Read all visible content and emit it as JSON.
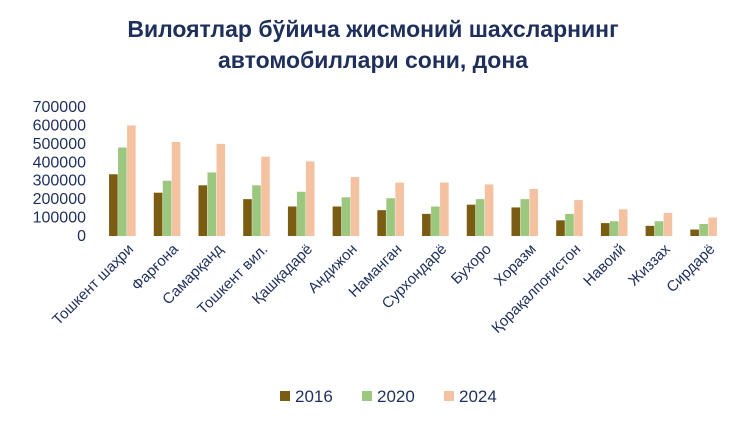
{
  "chart_data": {
    "type": "bar",
    "title_line1": "Вилоятлар бўйича жисмоний шахсларнинг",
    "title_line2": "автомобиллари сони, дона",
    "categories": [
      "Тошкент шаҳри",
      "Фарғона",
      "Самарқанд",
      "Тошкент вил.",
      "Қашқадарё",
      "Андижон",
      "Наманган",
      "Сурхондарё",
      "Бухоро",
      "Хоразм",
      "Қорақалпоғистон",
      "Навоий",
      "Жиззах",
      "Сирдарё"
    ],
    "series": [
      {
        "name": "2016",
        "color": "#7a5c12",
        "values": [
          335000,
          235000,
          275000,
          200000,
          160000,
          160000,
          140000,
          120000,
          170000,
          155000,
          85000,
          70000,
          55000,
          35000
        ]
      },
      {
        "name": "2020",
        "color": "#9bc77f",
        "values": [
          480000,
          300000,
          345000,
          275000,
          240000,
          210000,
          205000,
          160000,
          200000,
          200000,
          120000,
          80000,
          80000,
          65000
        ]
      },
      {
        "name": "2024",
        "color": "#f4c2a1",
        "values": [
          600000,
          510000,
          500000,
          430000,
          405000,
          320000,
          290000,
          290000,
          280000,
          255000,
          195000,
          145000,
          125000,
          100000
        ]
      }
    ],
    "yticks": [
      "0",
      "100000",
      "200000",
      "300000",
      "400000",
      "500000",
      "600000",
      "700000"
    ],
    "ylim": [
      0,
      700000
    ],
    "grid": false,
    "legend_position": "bottom"
  }
}
